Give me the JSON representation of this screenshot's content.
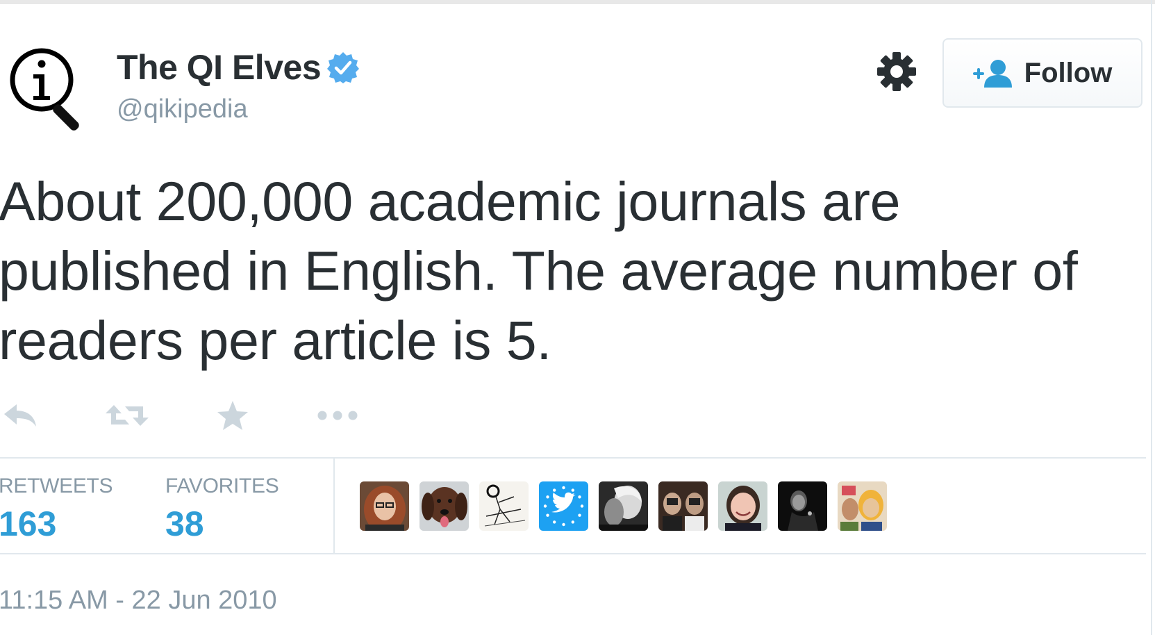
{
  "tweet": {
    "author_name": "The QI Elves",
    "handle": "@qikipedia",
    "text": "About 200,000 academic journals are published in English. The average number of readers per article is 5.",
    "timestamp": "11:15 AM - 22 Jun 2010"
  },
  "follow_button": {
    "label": "Follow",
    "icon": "add-user-icon"
  },
  "actions": [
    {
      "name": "reply",
      "icon": "reply-icon"
    },
    {
      "name": "retweet",
      "icon": "retweet-icon"
    },
    {
      "name": "favorite",
      "icon": "star-icon"
    },
    {
      "name": "more",
      "icon": "more-icon"
    }
  ],
  "stats": {
    "retweets_label": "RETWEETS",
    "retweets_count": "163",
    "favorites_label": "FAVORITES",
    "favorites_count": "38"
  },
  "favoriters": [
    "redhead-woman",
    "brown-dog",
    "sketch-drawing",
    "twitter-bird",
    "bw-portrait",
    "two-people-photo",
    "smiling-woman",
    "dark-portrait",
    "cartoon-group"
  ],
  "colors": {
    "accent": "#2f9dd6",
    "verified": "#55acee",
    "muted": "#8899a6",
    "text": "#292f33",
    "border": "#e1e8ed"
  }
}
